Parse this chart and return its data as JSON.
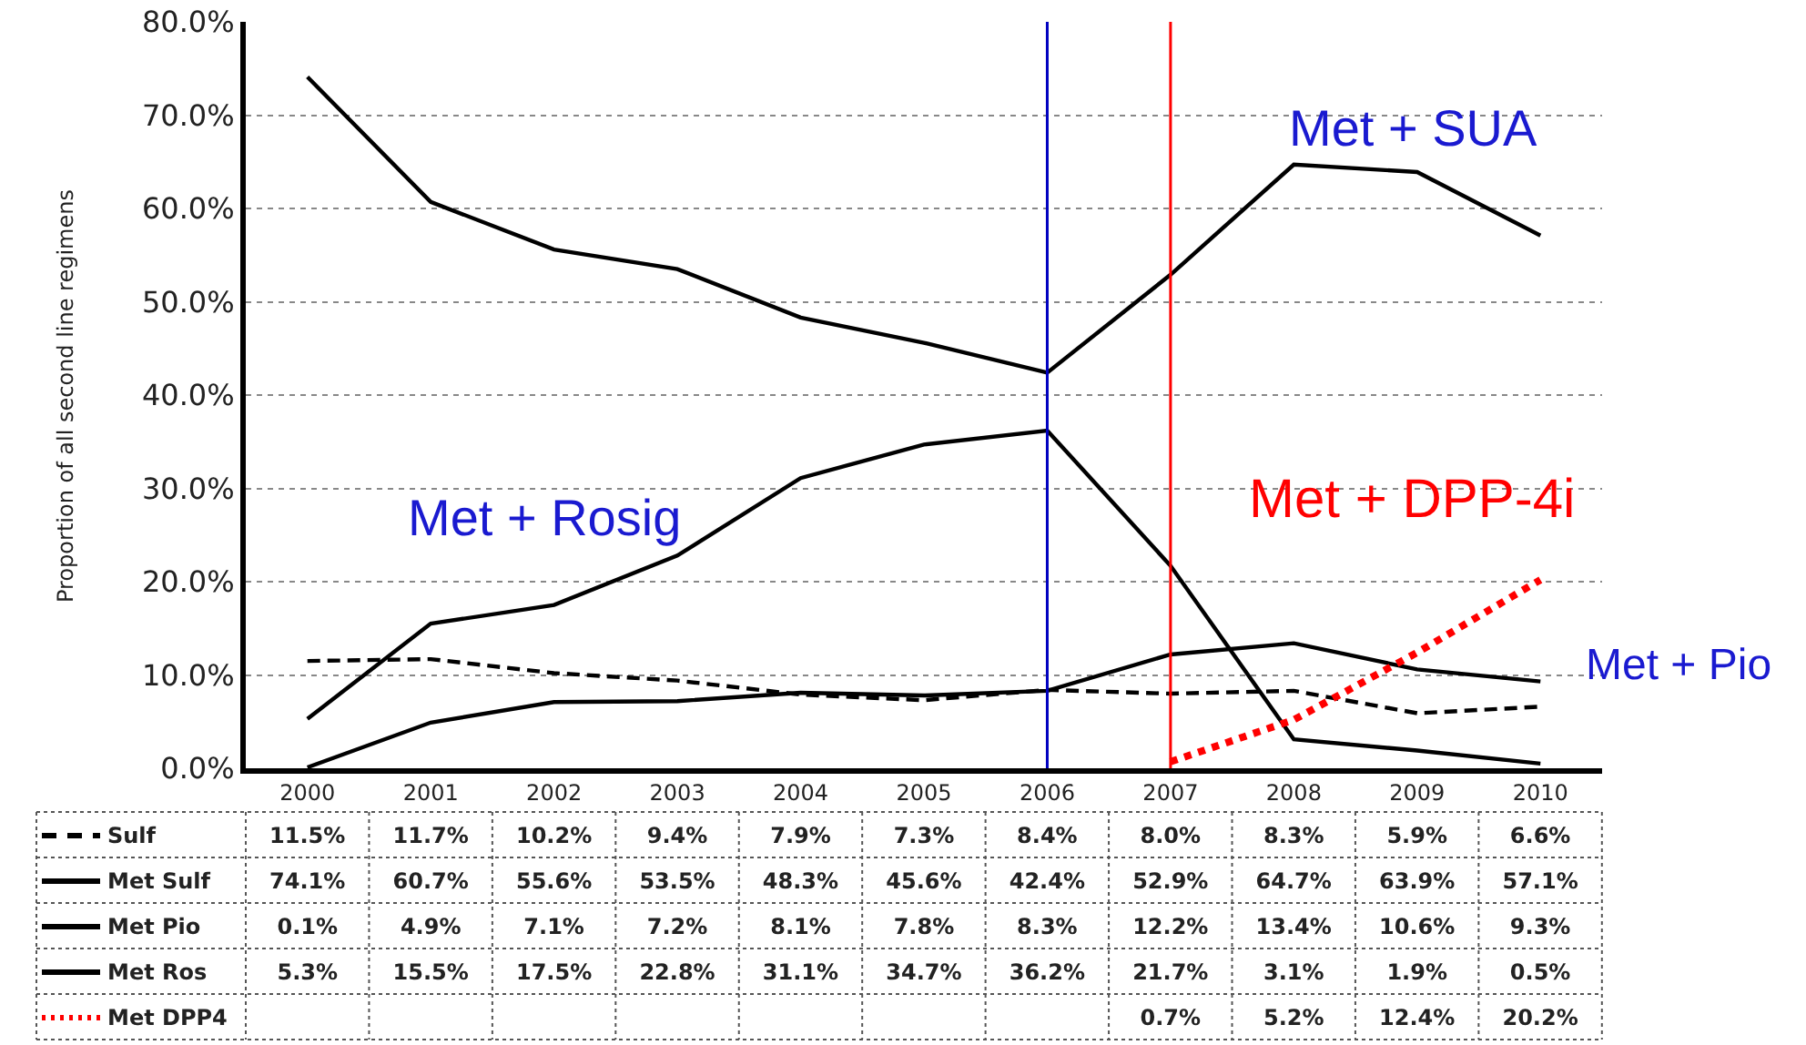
{
  "chart_data": {
    "type": "line",
    "ylabel": "Proportion of all second line regimens",
    "categories": [
      "2000",
      "2001",
      "2002",
      "2003",
      "2004",
      "2005",
      "2006",
      "2007",
      "2008",
      "2009",
      "2010"
    ],
    "series": [
      {
        "name": "Sulf",
        "color": "#000000",
        "line_style": "dashed",
        "values": [
          11.5,
          11.7,
          10.2,
          9.4,
          7.9,
          7.3,
          8.4,
          8.0,
          8.3,
          5.9,
          6.6
        ],
        "value_labels": [
          "11.5%",
          "11.7%",
          "10.2%",
          "9.4%",
          "7.9%",
          "7.3%",
          "8.4%",
          "8.0%",
          "8.3%",
          "5.9%",
          "6.6%"
        ]
      },
      {
        "name": "Met Sulf",
        "color": "#000000",
        "line_style": "solid",
        "values": [
          74.1,
          60.7,
          55.6,
          53.5,
          48.3,
          45.6,
          42.4,
          52.9,
          64.7,
          63.9,
          57.1
        ],
        "value_labels": [
          "74.1%",
          "60.7%",
          "55.6%",
          "53.5%",
          "48.3%",
          "45.6%",
          "42.4%",
          "52.9%",
          "64.7%",
          "63.9%",
          "57.1%"
        ]
      },
      {
        "name": "Met Pio",
        "color": "#000000",
        "line_style": "solid",
        "values": [
          0.1,
          4.9,
          7.1,
          7.2,
          8.1,
          7.8,
          8.3,
          12.2,
          13.4,
          10.6,
          9.3
        ],
        "value_labels": [
          "0.1%",
          "4.9%",
          "7.1%",
          "7.2%",
          "8.1%",
          "7.8%",
          "8.3%",
          "12.2%",
          "13.4%",
          "10.6%",
          "9.3%"
        ]
      },
      {
        "name": "Met Ros",
        "color": "#000000",
        "line_style": "solid",
        "values": [
          5.3,
          15.5,
          17.5,
          22.8,
          31.1,
          34.7,
          36.2,
          21.7,
          3.1,
          1.9,
          0.5
        ],
        "value_labels": [
          "5.3%",
          "15.5%",
          "17.5%",
          "22.8%",
          "31.1%",
          "34.7%",
          "36.2%",
          "21.7%",
          "3.1%",
          "1.9%",
          "0.5%"
        ]
      },
      {
        "name": "Met DPP4",
        "color": "#ff0000",
        "line_style": "dotted",
        "values": [
          null,
          null,
          null,
          null,
          null,
          null,
          null,
          0.7,
          5.2,
          12.4,
          20.2
        ],
        "value_labels": [
          null,
          null,
          null,
          null,
          null,
          null,
          null,
          "0.7%",
          "5.2%",
          "12.4%",
          "20.2%"
        ]
      }
    ],
    "ylim": [
      0,
      80
    ],
    "yticks": [
      {
        "value": 0,
        "label": "0.0%"
      },
      {
        "value": 10,
        "label": "10.0%"
      },
      {
        "value": 20,
        "label": "20.0%"
      },
      {
        "value": 30,
        "label": "30.0%"
      },
      {
        "value": 40,
        "label": "40.0%"
      },
      {
        "value": 50,
        "label": "50.0%"
      },
      {
        "value": 60,
        "label": "60.0%"
      },
      {
        "value": 70,
        "label": "70.0%"
      },
      {
        "value": 80,
        "label": "80.0%"
      }
    ],
    "grid": "y",
    "legend": "bottom left",
    "marker": "none",
    "ref_lines": [
      {
        "axis": "x",
        "value": "2006",
        "color": "#0000c0"
      },
      {
        "axis": "x",
        "value": "2007",
        "color": "#ff0000"
      }
    ],
    "annotations": [
      "Met + SUA",
      "Met + Rosig",
      "Met + DPP-4i",
      "Met + Pio"
    ]
  }
}
